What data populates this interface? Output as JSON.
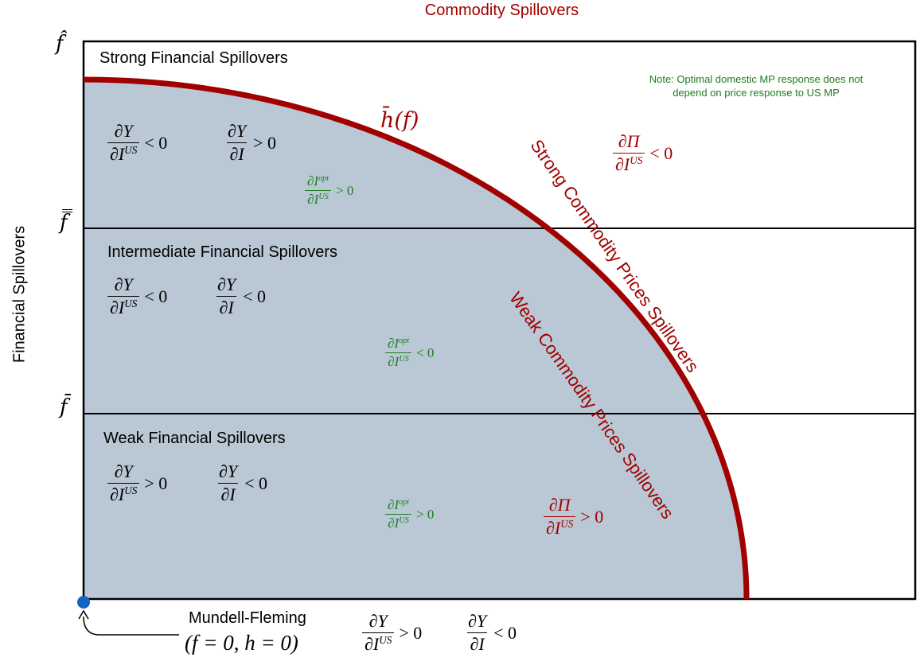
{
  "title": "Commodity Spillovers",
  "y_axis_label": "Financial Spillovers",
  "levels": [
    "f̂",
    "f̿",
    "f̄"
  ],
  "regions": [
    {
      "label": "Strong Financial Spillovers",
      "output": [
        {
          "num": "∂Y",
          "den": "∂I",
          "sup": "US",
          "rel": "< 0"
        },
        {
          "num": "∂Y",
          "den": "∂I",
          "rel": "> 0"
        }
      ],
      "policy": {
        "num": "∂I",
        "num_sup": "opt",
        "den": "∂I",
        "sup": "US",
        "rel": "> 0"
      }
    },
    {
      "label": "Intermediate Financial Spillovers",
      "output": [
        {
          "num": "∂Y",
          "den": "∂I",
          "sup": "US",
          "rel": "< 0"
        },
        {
          "num": "∂Y",
          "den": "∂I",
          "rel": "< 0"
        }
      ],
      "policy": {
        "num": "∂I",
        "num_sup": "opt",
        "den": "∂I",
        "sup": "US",
        "rel": "< 0"
      }
    },
    {
      "label": "Weak Financial Spillovers",
      "output": [
        {
          "num": "∂Y",
          "den": "∂I",
          "sup": "US",
          "rel": "> 0"
        },
        {
          "num": "∂Y",
          "den": "∂I",
          "rel": "< 0"
        }
      ],
      "policy": {
        "num": "∂I",
        "num_sup": "opt",
        "den": "∂I",
        "sup": "US",
        "rel": "> 0"
      }
    }
  ],
  "commodity": {
    "curve_label": "h̄(f)",
    "strong_label": "Strong Commodity Prices Spillovers",
    "weak_label": "Weak Commodity Prices Spillovers",
    "strong_inflation": {
      "num": "∂Π",
      "den": "∂I",
      "sup": "US",
      "rel": "< 0"
    },
    "weak_inflation": {
      "num": "∂Π",
      "den": "∂I",
      "sup": "US",
      "rel": "> 0"
    }
  },
  "note": [
    "Note: Optimal domestic MP response does not",
    "depend on price response to US MP"
  ],
  "origin": {
    "label": "Mundell-Fleming",
    "coords": "(f = 0, h = 0)",
    "output": [
      {
        "num": "∂Y",
        "den": "∂I",
        "sup": "US",
        "rel": "> 0"
      },
      {
        "num": "∂Y",
        "den": "∂I",
        "rel": "< 0"
      }
    ]
  }
}
